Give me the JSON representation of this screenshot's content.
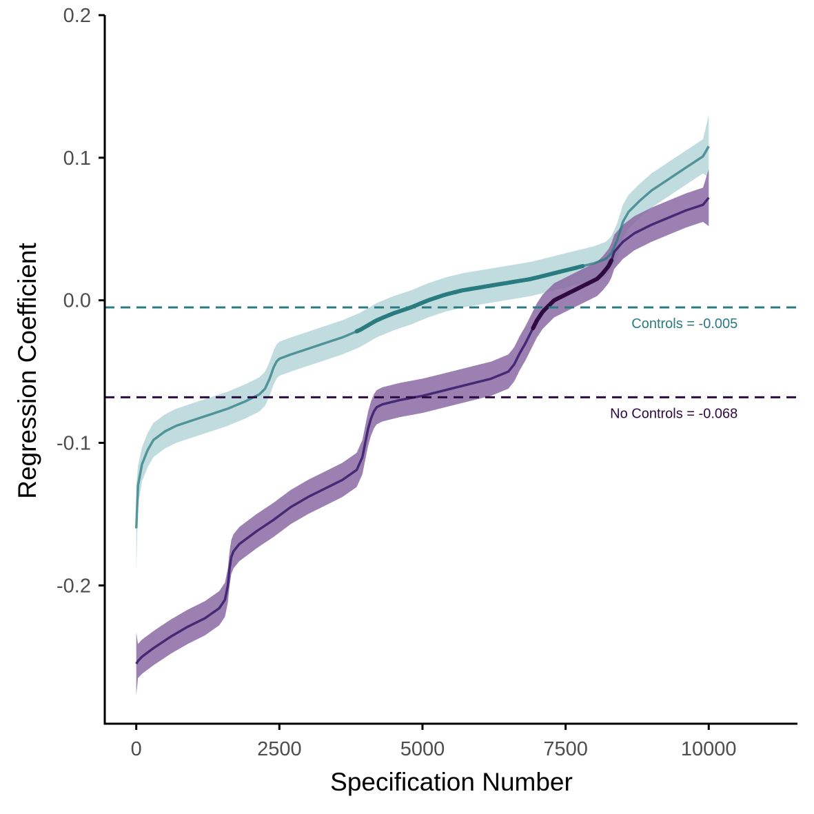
{
  "chart_data": {
    "type": "line",
    "xlabel": "Specification Number",
    "ylabel": "Regression Coefficient",
    "xlim": [
      -550,
      11550
    ],
    "ylim": [
      -0.297,
      0.2
    ],
    "x_ticks": [
      0,
      2500,
      5000,
      7500,
      10000
    ],
    "x_tick_labels": [
      "0",
      "2500",
      "5000",
      "7500",
      "10000"
    ],
    "y_ticks": [
      -0.2,
      -0.1,
      0.0,
      0.1,
      0.2
    ],
    "y_tick_labels": [
      "-0.2",
      "-0.1",
      "0.0",
      "0.1",
      "0.2"
    ],
    "grid": false,
    "series": [
      {
        "key": "controls",
        "color": "#2a7b80",
        "band_color": "#8ec0c4",
        "x": [
          0,
          30,
          100,
          200,
          300,
          500,
          700,
          1000,
          1300,
          1600,
          1900,
          2150,
          2250,
          2330,
          2400,
          2450,
          2500,
          2700,
          3000,
          3300,
          3600,
          3900,
          4200,
          4500,
          4800,
          5100,
          5400,
          5700,
          6000,
          6300,
          6600,
          6900,
          7200,
          7500,
          7800,
          8000,
          8200,
          8300,
          8400,
          8500,
          8600,
          8800,
          9000,
          9300,
          9600,
          9900,
          10000
        ],
        "y": [
          -0.16,
          -0.13,
          -0.115,
          -0.105,
          -0.098,
          -0.092,
          -0.088,
          -0.084,
          -0.08,
          -0.076,
          -0.071,
          -0.066,
          -0.062,
          -0.055,
          -0.047,
          -0.043,
          -0.041,
          -0.038,
          -0.034,
          -0.03,
          -0.026,
          -0.021,
          -0.014,
          -0.009,
          -0.005,
          0.0,
          0.004,
          0.007,
          0.009,
          0.011,
          0.013,
          0.015,
          0.018,
          0.021,
          0.024,
          0.026,
          0.029,
          0.033,
          0.042,
          0.055,
          0.062,
          0.07,
          0.077,
          0.085,
          0.093,
          0.101,
          0.108
        ],
        "band_halfwidth": [
          0.03,
          0.014,
          0.012,
          0.012,
          0.012,
          0.012,
          0.012,
          0.012,
          0.012,
          0.012,
          0.012,
          0.012,
          0.012,
          0.012,
          0.012,
          0.012,
          0.012,
          0.012,
          0.012,
          0.012,
          0.012,
          0.012,
          0.012,
          0.012,
          0.012,
          0.012,
          0.012,
          0.012,
          0.012,
          0.012,
          0.012,
          0.012,
          0.012,
          0.012,
          0.012,
          0.012,
          0.012,
          0.012,
          0.012,
          0.012,
          0.012,
          0.012,
          0.012,
          0.012,
          0.012,
          0.012,
          0.022
        ],
        "highlight_range": [
          3850,
          7800
        ],
        "reference_value": -0.005,
        "reference_label": "Controls = -0.005"
      },
      {
        "key": "no_controls",
        "color": "#3b1f6e",
        "band_color": "#8a6aa3",
        "highlight_color": "#2d0a42",
        "ref_color": "#2d0a42",
        "x": [
          0,
          30,
          100,
          300,
          600,
          900,
          1200,
          1450,
          1550,
          1600,
          1630,
          1660,
          1700,
          1800,
          2100,
          2400,
          2700,
          3000,
          3300,
          3600,
          3850,
          3950,
          4000,
          4050,
          4100,
          4150,
          4200,
          4300,
          4600,
          5000,
          5400,
          5800,
          6200,
          6500,
          6600,
          6700,
          6800,
          6900,
          7000,
          7100,
          7200,
          7300,
          7500,
          7700,
          7900,
          8050,
          8150,
          8250,
          8300,
          8350,
          8500,
          8700,
          9000,
          9300,
          9600,
          9900,
          10000
        ],
        "y": [
          -0.255,
          -0.253,
          -0.25,
          -0.244,
          -0.236,
          -0.229,
          -0.223,
          -0.216,
          -0.21,
          -0.2,
          -0.188,
          -0.18,
          -0.176,
          -0.171,
          -0.162,
          -0.154,
          -0.145,
          -0.138,
          -0.132,
          -0.126,
          -0.119,
          -0.11,
          -0.1,
          -0.09,
          -0.083,
          -0.078,
          -0.075,
          -0.073,
          -0.07,
          -0.067,
          -0.063,
          -0.059,
          -0.055,
          -0.05,
          -0.045,
          -0.037,
          -0.03,
          -0.022,
          -0.014,
          -0.008,
          -0.004,
          0.0,
          0.004,
          0.008,
          0.012,
          0.015,
          0.019,
          0.024,
          0.028,
          0.034,
          0.041,
          0.047,
          0.053,
          0.058,
          0.063,
          0.067,
          0.072
        ],
        "band_halfwidth": [
          0.022,
          0.012,
          0.012,
          0.012,
          0.012,
          0.012,
          0.012,
          0.012,
          0.012,
          0.012,
          0.012,
          0.012,
          0.012,
          0.012,
          0.012,
          0.012,
          0.012,
          0.012,
          0.012,
          0.012,
          0.012,
          0.012,
          0.012,
          0.012,
          0.012,
          0.012,
          0.012,
          0.012,
          0.012,
          0.012,
          0.012,
          0.012,
          0.012,
          0.012,
          0.012,
          0.012,
          0.012,
          0.012,
          0.012,
          0.012,
          0.012,
          0.012,
          0.012,
          0.012,
          0.012,
          0.012,
          0.012,
          0.012,
          0.012,
          0.012,
          0.012,
          0.012,
          0.012,
          0.012,
          0.012,
          0.012,
          0.02
        ],
        "highlight_range": [
          6930,
          8300
        ],
        "reference_value": -0.068,
        "reference_label": "No Controls = -0.068"
      }
    ]
  }
}
